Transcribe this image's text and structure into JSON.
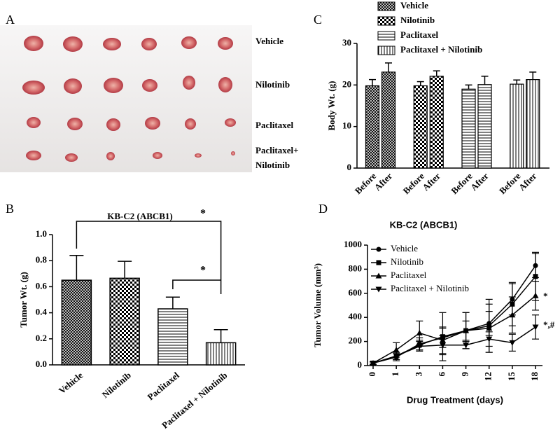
{
  "panel_labels": [
    "A",
    "B",
    "C",
    "D"
  ],
  "photo_panel": {
    "rows": [
      [
        "Vehicle"
      ],
      [
        "Nilotinib"
      ],
      [
        "Paclitaxel"
      ],
      [
        "Paclitaxel+",
        "Nilotinib"
      ]
    ]
  },
  "chart_data": [
    {
      "type": "bar",
      "title": "KB-C2 (ABCB1)",
      "y_label": "Tumor Wt. (g)",
      "categories": [
        "Vehicle",
        "Nilotinib",
        "Paclitaxel",
        "Paclitaxel + Nilotinib"
      ],
      "values": [
        0.65,
        0.665,
        0.43,
        0.17
      ],
      "errors": [
        0.19,
        0.13,
        0.09,
        0.1
      ],
      "patterns": [
        "crosshatch",
        "checker",
        "horizontal",
        "vertical"
      ],
      "color": "#000000",
      "ylim": [
        0,
        1
      ],
      "yticks": [
        {
          "value": 0,
          "label": "0.0"
        },
        0.2,
        0.4,
        0.6,
        0.8,
        {
          "value": 1,
          "label": "1.0"
        }
      ],
      "annotations": [
        "*",
        "*"
      ]
    },
    {
      "type": "grouped_bar",
      "y_label": "Body Wt. (g)",
      "categories": [
        "Before",
        "After"
      ],
      "series": [
        {
          "name": "Vehicle",
          "pattern": "crosshatch",
          "values": [
            19.8,
            23.1
          ],
          "errors": [
            1.5,
            2.2
          ]
        },
        {
          "name": "Nilotinib",
          "pattern": "checker",
          "values": [
            19.8,
            22.1
          ],
          "errors": [
            1.0,
            1.3
          ]
        },
        {
          "name": "Paclitaxel",
          "pattern": "horizontal",
          "values": [
            19.0,
            20.1
          ],
          "errors": [
            1.0,
            2.0
          ]
        },
        {
          "name": "Paclitaxel + Nilotinib",
          "pattern": "vertical",
          "values": [
            20.2,
            21.3
          ],
          "errors": [
            1.0,
            1.8
          ]
        }
      ],
      "color": "#000000",
      "ylim": [
        0,
        30
      ],
      "yticks": [
        0,
        10,
        20,
        30
      ],
      "legend": "top"
    },
    {
      "type": "line",
      "title": "KB-C2 (ABCB1)",
      "x_label": "Drug Treatment (days)",
      "y_label": "Tumor Volume (mm³)",
      "categories": [
        "0",
        "1",
        "3",
        "6",
        "9",
        "12",
        "15",
        "18"
      ],
      "series": [
        {
          "name": "Vehicle",
          "marker": "circle",
          "color": "#000000",
          "values": [
            20,
            70,
            180,
            230,
            290,
            350,
            550,
            830
          ],
          "errors": [
            10,
            30,
            50,
            80,
            80,
            100,
            130,
            100
          ]
        },
        {
          "name": "Nilotinib",
          "marker": "square",
          "color": "#000000",
          "values": [
            20,
            80,
            170,
            240,
            290,
            330,
            510,
            740
          ],
          "errors": [
            10,
            30,
            40,
            200,
            150,
            220,
            180,
            200
          ]
        },
        {
          "name": "Paclitaxel",
          "marker": "triangle",
          "color": "#000000",
          "values": [
            20,
            130,
            270,
            210,
            290,
            310,
            420,
            580
          ],
          "errors": [
            10,
            60,
            100,
            110,
            150,
            200,
            150,
            120
          ]
        },
        {
          "name": "Paclitaxel + Nilotinib",
          "marker": "triangle-down",
          "color": "#000000",
          "values": [
            20,
            80,
            160,
            170,
            170,
            220,
            190,
            320
          ],
          "errors": [
            10,
            30,
            40,
            80,
            30,
            60,
            70,
            100
          ]
        }
      ],
      "ylim": [
        0,
        1000
      ],
      "yticks": [
        0,
        200,
        400,
        600,
        800,
        1000
      ],
      "legend": "upper left",
      "annotations": [
        "*",
        "*,#"
      ]
    }
  ]
}
